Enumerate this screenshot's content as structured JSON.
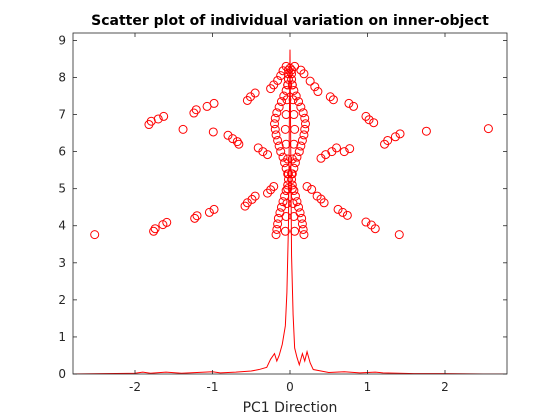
{
  "chart_data": {
    "type": "scatter",
    "title": "Scatter plot of individual variation on inner-object",
    "xlabel": "PC1 Direction",
    "ylabel": "",
    "xlim": [
      -2.8,
      2.8
    ],
    "ylim": [
      0,
      9.2
    ],
    "x_ticks": [
      -2,
      -1,
      0,
      1,
      2
    ],
    "x_tick_labels": [
      "-2",
      "-1",
      "0",
      "1",
      "2"
    ],
    "y_ticks": [
      0,
      1,
      2,
      3,
      4,
      5,
      6,
      7,
      8,
      9
    ],
    "y_tick_labels": [
      "0",
      "1",
      "2",
      "3",
      "4",
      "5",
      "6",
      "7",
      "8",
      "9"
    ],
    "grid": false,
    "legend": "none",
    "color": "#ff0000",
    "series": [
      {
        "type": "scatter",
        "marker": "open-circle",
        "points": [
          [
            -2.52,
            3.76
          ],
          [
            -1.76,
            3.85
          ],
          [
            -1.74,
            3.92
          ],
          [
            -1.64,
            4.03
          ],
          [
            -1.59,
            4.09
          ],
          [
            -1.23,
            4.2
          ],
          [
            -1.2,
            4.27
          ],
          [
            -1.04,
            4.36
          ],
          [
            -0.98,
            4.44
          ],
          [
            -0.58,
            4.53
          ],
          [
            -0.55,
            4.62
          ],
          [
            -0.49,
            4.71
          ],
          [
            -0.45,
            4.8
          ],
          [
            -0.29,
            4.88
          ],
          [
            -0.25,
            4.97
          ],
          [
            -0.21,
            5.06
          ],
          [
            0.22,
            5.06
          ],
          [
            0.28,
            4.98
          ],
          [
            0.35,
            4.8
          ],
          [
            0.4,
            4.72
          ],
          [
            0.44,
            4.62
          ],
          [
            0.62,
            4.44
          ],
          [
            0.68,
            4.36
          ],
          [
            0.74,
            4.28
          ],
          [
            0.98,
            4.1
          ],
          [
            1.05,
            4.02
          ],
          [
            1.1,
            3.92
          ],
          [
            1.41,
            3.76
          ],
          [
            -1.82,
            6.73
          ],
          [
            -1.79,
            6.82
          ],
          [
            -1.7,
            6.88
          ],
          [
            -1.63,
            6.95
          ],
          [
            -1.38,
            6.6
          ],
          [
            -1.24,
            7.04
          ],
          [
            -1.21,
            7.13
          ],
          [
            -1.07,
            7.22
          ],
          [
            -0.98,
            7.3
          ],
          [
            -0.99,
            6.53
          ],
          [
            -0.8,
            6.44
          ],
          [
            -0.74,
            6.35
          ],
          [
            -0.68,
            6.27
          ],
          [
            -0.66,
            6.2
          ],
          [
            -0.55,
            7.38
          ],
          [
            -0.51,
            7.48
          ],
          [
            -0.45,
            7.58
          ],
          [
            -0.41,
            6.1
          ],
          [
            -0.35,
            6.0
          ],
          [
            -0.29,
            5.92
          ],
          [
            -0.25,
            7.7
          ],
          [
            -0.21,
            7.8
          ],
          [
            -0.16,
            7.92
          ],
          [
            -0.12,
            8.05
          ],
          [
            -0.09,
            8.18
          ],
          [
            -0.05,
            8.3
          ],
          [
            0.06,
            8.3
          ],
          [
            0.14,
            8.2
          ],
          [
            0.18,
            8.1
          ],
          [
            0.26,
            7.9
          ],
          [
            0.32,
            7.75
          ],
          [
            0.36,
            7.62
          ],
          [
            0.52,
            7.48
          ],
          [
            0.56,
            7.4
          ],
          [
            0.4,
            5.82
          ],
          [
            0.46,
            5.92
          ],
          [
            0.54,
            6.0
          ],
          [
            0.6,
            6.1
          ],
          [
            0.76,
            7.3
          ],
          [
            0.82,
            7.22
          ],
          [
            0.7,
            6.0
          ],
          [
            0.77,
            6.08
          ],
          [
            0.98,
            6.95
          ],
          [
            1.02,
            6.86
          ],
          [
            1.08,
            6.78
          ],
          [
            1.22,
            6.2
          ],
          [
            1.26,
            6.3
          ],
          [
            1.36,
            6.4
          ],
          [
            1.42,
            6.48
          ],
          [
            1.76,
            6.55
          ],
          [
            2.56,
            6.62
          ],
          [
            -0.18,
            3.76
          ],
          [
            -0.17,
            3.9
          ],
          [
            -0.16,
            4.05
          ],
          [
            -0.15,
            4.2
          ],
          [
            -0.13,
            4.35
          ],
          [
            -0.11,
            4.5
          ],
          [
            -0.09,
            4.65
          ],
          [
            -0.07,
            4.8
          ],
          [
            -0.05,
            4.95
          ],
          [
            -0.03,
            5.1
          ],
          [
            -0.02,
            5.25
          ],
          [
            -0.03,
            5.4
          ],
          [
            -0.05,
            5.55
          ],
          [
            -0.07,
            5.7
          ],
          [
            -0.09,
            5.85
          ],
          [
            -0.12,
            6.0
          ],
          [
            -0.14,
            6.15
          ],
          [
            -0.16,
            6.3
          ],
          [
            -0.18,
            6.45
          ],
          [
            -0.19,
            6.6
          ],
          [
            -0.2,
            6.75
          ],
          [
            -0.19,
            6.9
          ],
          [
            -0.17,
            7.05
          ],
          [
            -0.14,
            7.2
          ],
          [
            -0.11,
            7.35
          ],
          [
            -0.08,
            7.5
          ],
          [
            -0.05,
            7.65
          ],
          [
            -0.03,
            7.8
          ],
          [
            -0.02,
            7.95
          ],
          [
            -0.02,
            8.1
          ],
          [
            0.18,
            3.76
          ],
          [
            0.17,
            3.9
          ],
          [
            0.16,
            4.05
          ],
          [
            0.15,
            4.2
          ],
          [
            0.13,
            4.35
          ],
          [
            0.11,
            4.5
          ],
          [
            0.09,
            4.65
          ],
          [
            0.07,
            4.8
          ],
          [
            0.05,
            4.95
          ],
          [
            0.03,
            5.1
          ],
          [
            0.02,
            5.25
          ],
          [
            0.03,
            5.4
          ],
          [
            0.05,
            5.55
          ],
          [
            0.07,
            5.7
          ],
          [
            0.09,
            5.85
          ],
          [
            0.12,
            6.0
          ],
          [
            0.14,
            6.15
          ],
          [
            0.16,
            6.3
          ],
          [
            0.18,
            6.45
          ],
          [
            0.19,
            6.6
          ],
          [
            0.2,
            6.75
          ],
          [
            0.19,
            6.9
          ],
          [
            0.17,
            7.05
          ],
          [
            0.14,
            7.2
          ],
          [
            0.11,
            7.35
          ],
          [
            0.08,
            7.5
          ],
          [
            0.05,
            7.65
          ],
          [
            0.03,
            7.8
          ],
          [
            0.02,
            7.95
          ],
          [
            0.02,
            8.1
          ],
          [
            -0.06,
            3.85
          ],
          [
            -0.05,
            4.25
          ],
          [
            -0.04,
            4.6
          ],
          [
            -0.03,
            5.0
          ],
          [
            -0.02,
            5.4
          ],
          [
            -0.03,
            5.8
          ],
          [
            -0.05,
            6.2
          ],
          [
            -0.06,
            6.6
          ],
          [
            -0.05,
            7.0
          ],
          [
            -0.04,
            7.4
          ],
          [
            -0.03,
            7.8
          ],
          [
            -0.02,
            8.2
          ],
          [
            0.06,
            3.85
          ],
          [
            0.05,
            4.25
          ],
          [
            0.04,
            4.6
          ],
          [
            0.03,
            5.0
          ],
          [
            0.02,
            5.4
          ],
          [
            0.03,
            5.8
          ],
          [
            0.05,
            6.2
          ],
          [
            0.06,
            6.6
          ],
          [
            0.05,
            7.0
          ],
          [
            0.04,
            7.4
          ],
          [
            0.03,
            7.8
          ],
          [
            0.02,
            8.2
          ],
          [
            0.0,
            8.25
          ]
        ]
      },
      {
        "type": "line",
        "points": [
          [
            -2.8,
            0.0
          ],
          [
            -2.4,
            0.01
          ],
          [
            -2.0,
            0.02
          ],
          [
            -1.9,
            0.05
          ],
          [
            -1.8,
            0.02
          ],
          [
            -1.6,
            0.05
          ],
          [
            -1.4,
            0.02
          ],
          [
            -1.2,
            0.04
          ],
          [
            -1.0,
            0.06
          ],
          [
            -0.9,
            0.03
          ],
          [
            -0.7,
            0.05
          ],
          [
            -0.5,
            0.08
          ],
          [
            -0.4,
            0.12
          ],
          [
            -0.3,
            0.18
          ],
          [
            -0.25,
            0.4
          ],
          [
            -0.2,
            0.55
          ],
          [
            -0.17,
            0.35
          ],
          [
            -0.14,
            0.5
          ],
          [
            -0.1,
            0.8
          ],
          [
            -0.06,
            1.3
          ],
          [
            -0.04,
            2.2
          ],
          [
            -0.02,
            4.0
          ],
          [
            0.0,
            8.75
          ],
          [
            0.02,
            3.2
          ],
          [
            0.04,
            1.6
          ],
          [
            0.06,
            0.7
          ],
          [
            0.09,
            0.45
          ],
          [
            0.12,
            0.25
          ],
          [
            0.16,
            0.55
          ],
          [
            0.19,
            0.35
          ],
          [
            0.22,
            0.6
          ],
          [
            0.26,
            0.3
          ],
          [
            0.3,
            0.12
          ],
          [
            0.4,
            0.08
          ],
          [
            0.5,
            0.04
          ],
          [
            0.7,
            0.06
          ],
          [
            0.9,
            0.03
          ],
          [
            1.1,
            0.05
          ],
          [
            1.2,
            0.03
          ],
          [
            1.4,
            0.02
          ],
          [
            1.6,
            0.01
          ],
          [
            2.0,
            0.01
          ],
          [
            2.5,
            0.0
          ],
          [
            2.8,
            0.0
          ]
        ]
      }
    ]
  }
}
